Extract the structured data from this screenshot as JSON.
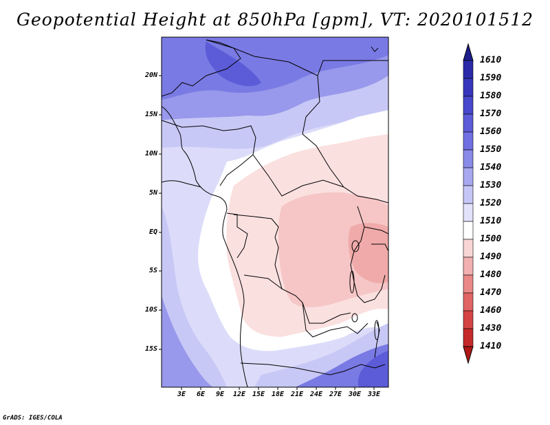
{
  "title": "Geopotential Height at 850hPa [gpm], VT: 2020101512",
  "credit": "GrADS: IGES/COLA",
  "colors": {
    "strong_blue": "#4040c0",
    "mid_blue": "#6a6ae0",
    "light_blue": "#9898ec",
    "pale_blue": "#c8c8f6",
    "faint_blue": "#dcdcfa",
    "white": "#ffffff",
    "pale_red": "#fbe0e0",
    "light_red": "#f6c6c6",
    "mid_red": "#f0aaaa",
    "border": "#000000"
  },
  "map": {
    "lat_labels": [
      "20N",
      "15N",
      "10N",
      "5N",
      "EQ",
      "5S",
      "10S",
      "15S"
    ],
    "lon_labels": [
      "3E",
      "6E",
      "9E",
      "12E",
      "15E",
      "18E",
      "21E",
      "24E",
      "27E",
      "30E",
      "33E"
    ]
  },
  "colorbar": {
    "levels": [
      "1610",
      "1590",
      "1580",
      "1570",
      "1560",
      "1550",
      "1540",
      "1530",
      "1520",
      "1510",
      "1500",
      "1490",
      "1480",
      "1470",
      "1460",
      "1430",
      "1410"
    ],
    "colors": [
      "#1e1e8c",
      "#2a2aa8",
      "#3636bc",
      "#4848cc",
      "#5c5cd8",
      "#7070e2",
      "#8a8ae8",
      "#a8a8f0",
      "#c6c6f6",
      "#e2e2fb",
      "#ffffff",
      "#f9d6d6",
      "#f2b0b0",
      "#ea8888",
      "#e06464",
      "#d44444",
      "#c42a2a",
      "#b01818"
    ]
  }
}
